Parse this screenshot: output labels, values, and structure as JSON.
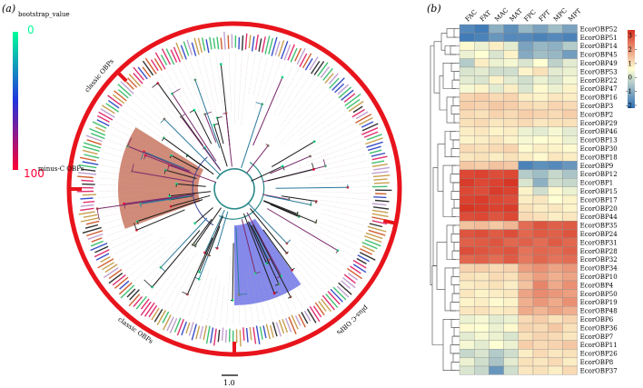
{
  "panel_a": {
    "label": "(a)",
    "legend": {
      "title": "bootstrap_value",
      "min_label": "0",
      "max_label": "100",
      "min_color": "#00ff99",
      "mid_color": "#2233dd",
      "max_color": "#ff0033"
    },
    "clades": [
      {
        "name": "classic OBPs",
        "start_deg": -165,
        "end_deg": 12,
        "label_deg": -140
      },
      {
        "name": "plus-C OBPs",
        "start_deg": 12,
        "end_deg": 90,
        "label_deg": 48
      },
      {
        "name": "classic OBPs",
        "start_deg": 90,
        "end_deg": 180,
        "label_deg": 125
      },
      {
        "name": "minus-C OBPs",
        "start_deg": 180,
        "end_deg": 225,
        "label_deg": 186
      }
    ],
    "highlights": [
      {
        "name": "plus-C clade",
        "start_deg": 55,
        "end_deg": 90,
        "color": "#6f74e6"
      },
      {
        "name": "minus-C clade",
        "start_deg": 160,
        "end_deg": 212,
        "color": "#c87560"
      }
    ],
    "tip_colors": [
      "#c8a050",
      "#e03070",
      "#3a50c8",
      "#40c070",
      "#333333",
      "#c0a0d0",
      "#d06030"
    ],
    "scale_bar_label": "1.0"
  },
  "panel_b": {
    "label": "(b)",
    "columns": [
      "FAC",
      "FAT",
      "MAC",
      "MAT",
      "FPC",
      "FPT",
      "MPC",
      "MPT"
    ],
    "rows": [
      {
        "name": "EcorOBP52",
        "values": [
          -1.8,
          -2.0,
          -1.2,
          -1.7,
          -1.1,
          -1.4,
          -1.0,
          -1.4
        ]
      },
      {
        "name": "EcorOBP51",
        "values": [
          -2.0,
          -1.9,
          -1.6,
          -1.8,
          -1.8,
          -1.9,
          -1.8,
          -1.9
        ]
      },
      {
        "name": "EcorOBP14",
        "values": [
          0.1,
          -0.2,
          0.3,
          -0.3,
          -1.4,
          -1.1,
          -1.2,
          -0.8
        ]
      },
      {
        "name": "EcorOBP45",
        "values": [
          -0.2,
          0.0,
          -0.4,
          0.2,
          -1.3,
          -1.0,
          -1.1,
          -1.5
        ]
      },
      {
        "name": "EcorOBP49",
        "values": [
          -0.8,
          0.3,
          -0.2,
          -0.1,
          -0.4,
          0.0,
          -0.7,
          -0.3
        ]
      },
      {
        "name": "EcorOBP53",
        "values": [
          -0.4,
          -0.3,
          -0.5,
          -0.5,
          0.2,
          0.5,
          -0.3,
          -0.2
        ]
      },
      {
        "name": "EcorOBP22",
        "values": [
          -0.3,
          -0.4,
          0.2,
          -0.3,
          -0.5,
          -0.2,
          -0.4,
          -0.1
        ]
      },
      {
        "name": "EcorOBP47",
        "values": [
          -0.1,
          0.2,
          -0.3,
          0.3,
          -0.4,
          0.1,
          -0.2,
          0.2
        ]
      },
      {
        "name": "EcorOBP16",
        "values": [
          0.7,
          0.8,
          0.6,
          0.7,
          0.3,
          0.2,
          0.4,
          0.3
        ]
      },
      {
        "name": "EcorOBP3",
        "values": [
          0.8,
          0.7,
          0.9,
          0.8,
          0.6,
          0.5,
          0.7,
          0.6
        ]
      },
      {
        "name": "EcorOBP2",
        "values": [
          0.6,
          0.5,
          0.7,
          0.6,
          0.8,
          0.7,
          0.6,
          0.8
        ]
      },
      {
        "name": "EcorOBP29",
        "values": [
          0.5,
          0.6,
          0.4,
          0.5,
          0.6,
          0.4,
          0.5,
          0.5
        ]
      },
      {
        "name": "EcorOBP46",
        "values": [
          0.3,
          0.4,
          0.2,
          0.3,
          -0.2,
          -0.3,
          -0.1,
          -0.3
        ]
      },
      {
        "name": "EcorOBP13",
        "values": [
          0.2,
          0.3,
          0.4,
          0.2,
          -0.1,
          0.0,
          0.1,
          -0.2
        ]
      },
      {
        "name": "EcorOBP30",
        "values": [
          0.6,
          0.5,
          0.6,
          0.7,
          0.1,
          0.3,
          0.2,
          0.1
        ]
      },
      {
        "name": "EcorOBP18",
        "values": [
          0.4,
          0.5,
          0.3,
          0.5,
          0.3,
          0.1,
          0.4,
          0.3
        ]
      },
      {
        "name": "EcorOBP9",
        "values": [
          0.9,
          0.8,
          1.0,
          0.9,
          -1.9,
          -1.7,
          -1.8,
          -1.6
        ]
      },
      {
        "name": "EcorOBP12",
        "values": [
          3.0,
          3.1,
          2.9,
          3.0,
          -0.8,
          -1.0,
          -0.6,
          -0.9
        ]
      },
      {
        "name": "EcorOBP1",
        "values": [
          3.2,
          3.0,
          3.1,
          3.3,
          -0.4,
          -1.2,
          -0.5,
          -0.6
        ]
      },
      {
        "name": "EcorOBP15",
        "values": [
          3.0,
          2.9,
          3.2,
          3.1,
          0.2,
          -0.5,
          0.1,
          -0.2
        ]
      },
      {
        "name": "EcorOBP17",
        "values": [
          3.1,
          3.2,
          3.0,
          2.9,
          0.3,
          0.4,
          0.0,
          0.2
        ]
      },
      {
        "name": "EcorOBP20",
        "values": [
          3.3,
          3.2,
          3.1,
          3.2,
          0.5,
          0.3,
          0.4,
          0.2
        ]
      },
      {
        "name": "EcorOBP44",
        "values": [
          2.9,
          3.0,
          2.8,
          3.0,
          0.6,
          0.5,
          0.3,
          0.4
        ]
      },
      {
        "name": "EcorOBP35",
        "values": [
          1.0,
          1.1,
          0.9,
          1.2,
          2.4,
          2.8,
          2.6,
          2.7
        ]
      },
      {
        "name": "EcorOBP24",
        "values": [
          2.8,
          2.9,
          2.7,
          2.9,
          2.5,
          2.7,
          2.6,
          2.8
        ]
      },
      {
        "name": "EcorOBP31",
        "values": [
          2.6,
          2.7,
          2.8,
          2.5,
          2.6,
          2.4,
          2.7,
          2.5
        ]
      },
      {
        "name": "EcorOBP28",
        "values": [
          2.9,
          2.8,
          2.7,
          2.8,
          2.3,
          2.5,
          2.4,
          2.6
        ]
      },
      {
        "name": "EcorOBP32",
        "values": [
          2.5,
          2.6,
          2.4,
          2.7,
          2.2,
          2.5,
          2.3,
          2.4
        ]
      },
      {
        "name": "EcorOBP34",
        "values": [
          0.7,
          0.8,
          0.6,
          0.7,
          1.6,
          1.8,
          1.5,
          1.7
        ]
      },
      {
        "name": "EcorOBP10",
        "values": [
          0.5,
          0.4,
          0.6,
          0.5,
          1.2,
          1.6,
          1.3,
          1.5
        ]
      },
      {
        "name": "EcorOBP4",
        "values": [
          0.3,
          0.4,
          0.5,
          0.3,
          1.0,
          2.0,
          1.4,
          1.8
        ]
      },
      {
        "name": "EcorOBP50",
        "values": [
          0.4,
          0.2,
          0.3,
          0.4,
          1.5,
          1.9,
          1.7,
          1.6
        ]
      },
      {
        "name": "EcorOBP19",
        "values": [
          0.2,
          0.3,
          0.1,
          0.2,
          1.3,
          1.7,
          1.4,
          1.8
        ]
      },
      {
        "name": "EcorOBP48",
        "values": [
          0.4,
          0.5,
          0.3,
          0.4,
          1.4,
          1.2,
          1.5,
          1.3
        ]
      },
      {
        "name": "EcorOBP6",
        "values": [
          -0.2,
          -0.1,
          -0.3,
          -0.2,
          0.6,
          0.8,
          0.5,
          0.7
        ]
      },
      {
        "name": "EcorOBP36",
        "values": [
          0.1,
          0.0,
          -0.2,
          0.1,
          0.7,
          0.6,
          0.9,
          0.5
        ]
      },
      {
        "name": "EcorOBP7",
        "values": [
          -0.3,
          -0.1,
          -0.2,
          -0.4,
          0.5,
          0.7,
          0.6,
          0.4
        ]
      },
      {
        "name": "EcorOBP11",
        "values": [
          -0.1,
          -0.3,
          0.0,
          -0.2,
          0.8,
          0.6,
          0.7,
          0.9
        ]
      },
      {
        "name": "EcorOBP26",
        "values": [
          -0.6,
          -0.4,
          -0.8,
          -0.5,
          0.3,
          0.6,
          0.4,
          0.5
        ]
      },
      {
        "name": "EcorOBP8",
        "values": [
          -0.2,
          -0.5,
          -0.9,
          -0.3,
          0.5,
          0.4,
          0.6,
          0.3
        ]
      },
      {
        "name": "EcorOBP37",
        "values": [
          -0.4,
          -0.6,
          -1.6,
          -0.5,
          0.4,
          0.5,
          0.3,
          0.6
        ]
      }
    ],
    "color_scale": {
      "ticks": [
        3,
        2,
        1,
        0,
        -1,
        -2
      ],
      "min": -2.2,
      "max": 3.4,
      "low_color": "#2f6fb5",
      "mid_color": "#ffffd4",
      "high_color": "#d7301f"
    }
  }
}
